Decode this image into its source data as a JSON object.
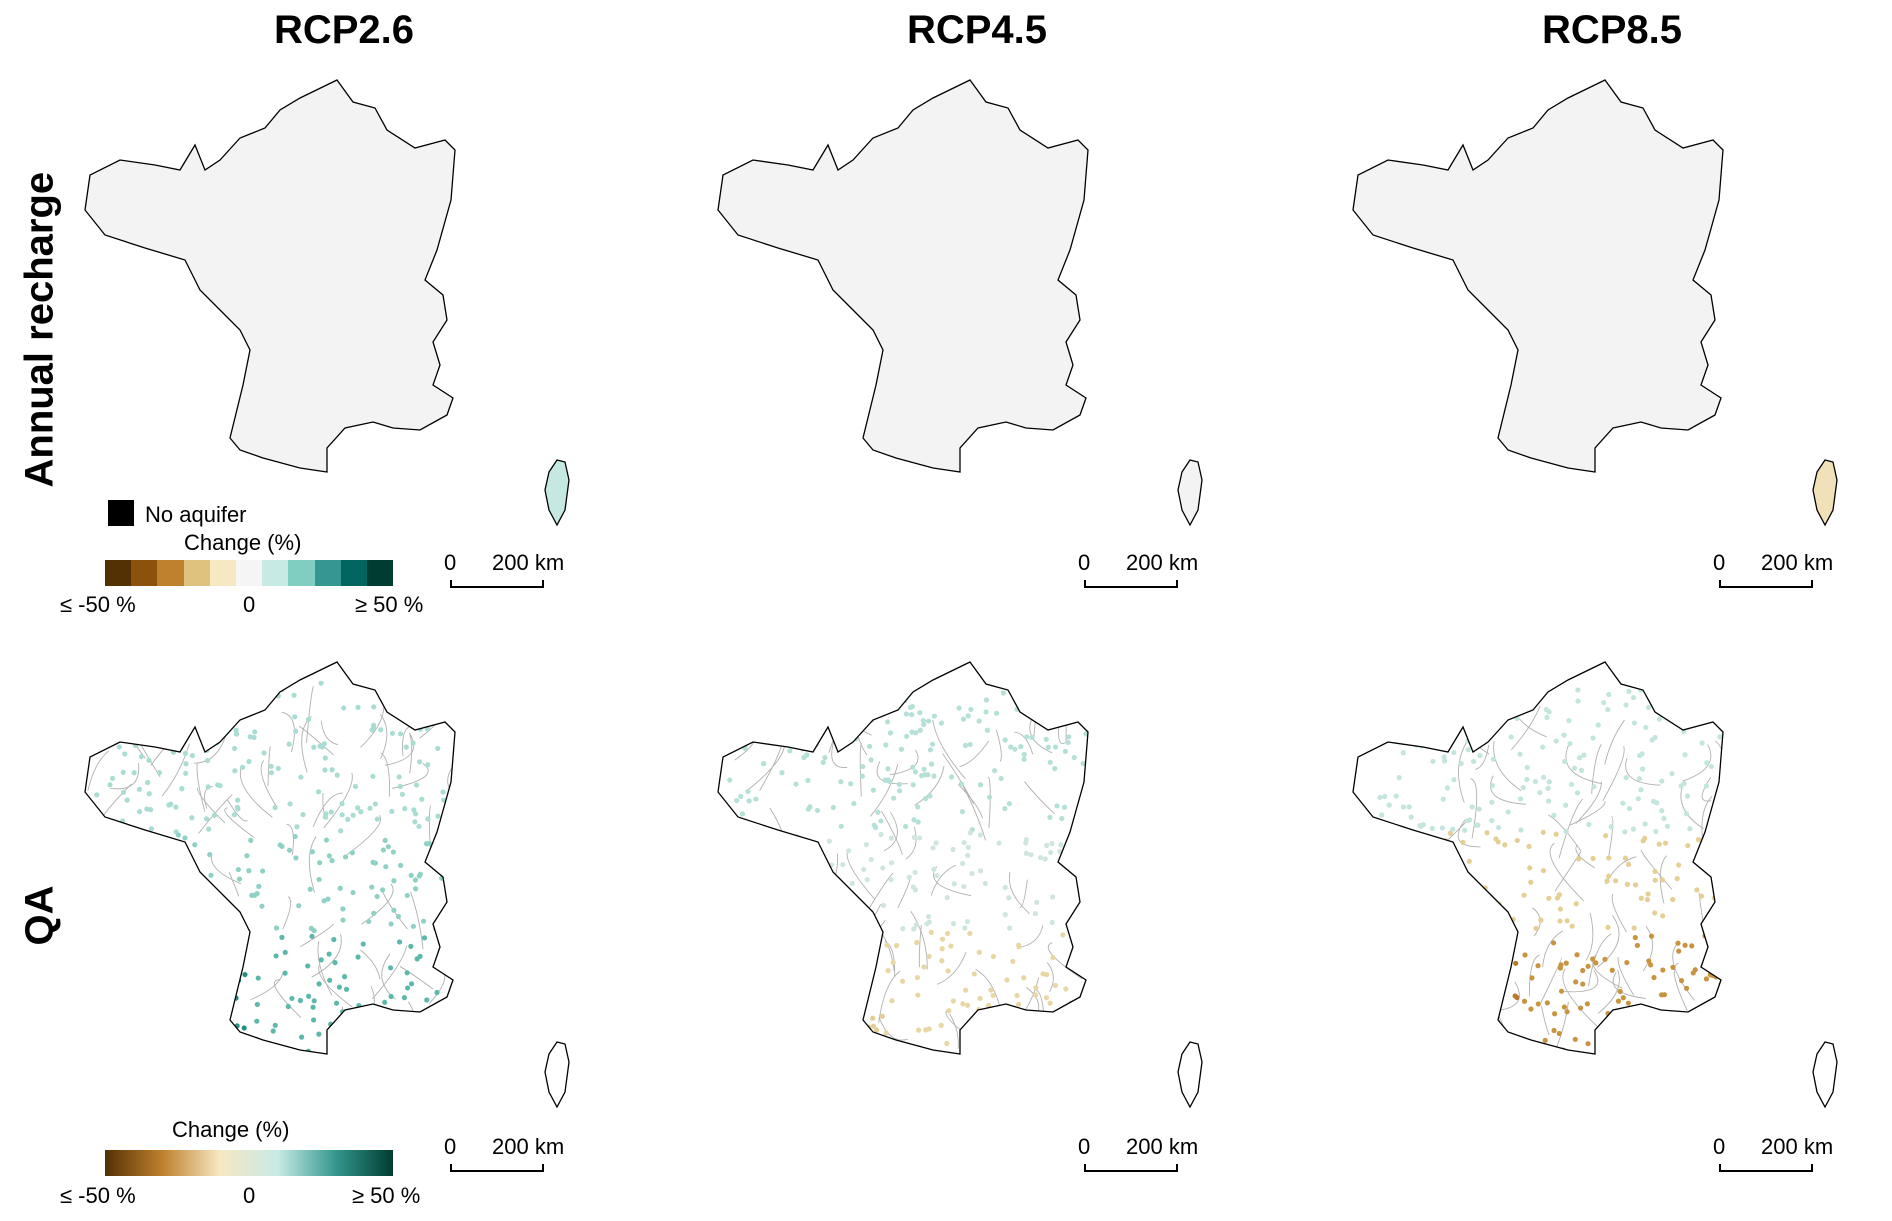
{
  "columns": [
    "RCP2.6",
    "RCP4.5",
    "RCP8.5"
  ],
  "rows": [
    "Annual recharge",
    "QA"
  ],
  "colors": {
    "no_aquifer": "#000000",
    "land_neutral": "#f3f3f3",
    "recharge_positive": "#b9e3dc",
    "recharge_positive_strong": "#7fcdc0",
    "recharge_negative": "#f1dfb3",
    "discharge_neutral": "#eef0e6"
  },
  "recharge_legend": {
    "no_aquifer_label": "No aquifer",
    "title": "Change (%)",
    "min_label": "≤ -50 %",
    "mid_label": "0",
    "max_label": "≥ 50 %",
    "bins": [
      "#543005",
      "#8c510a",
      "#bf812d",
      "#dfc27d",
      "#f6e8c3",
      "#f5f5f5",
      "#c7eae5",
      "#80cdc1",
      "#35978f",
      "#01665e",
      "#003c30"
    ]
  },
  "qa_legend": {
    "title": "Change (%)",
    "min_label": "≤ -50 %",
    "mid_label": "0",
    "max_label": "≥ 50 %",
    "gradient": [
      "#543005",
      "#bf812d",
      "#f6e8c3",
      "#c7eae5",
      "#35978f",
      "#003c30"
    ]
  },
  "scalebar": {
    "zero": "0",
    "distance": "200 km"
  },
  "panels": [
    {
      "row": "Annual recharge",
      "scenario": "RCP2.6",
      "fill_north": "#c5e8e2",
      "fill_center": "#f3f3f3",
      "fill_southwest": "#c5e8e2",
      "fill_south": "#c5e8e2",
      "fill_southeast": "#f3f3f3",
      "corsica": "#c5e8e2"
    },
    {
      "row": "Annual recharge",
      "scenario": "RCP4.5",
      "fill_north": "#bfe6df",
      "fill_center": "#f3f3f3",
      "fill_southwest": "#bfe6df",
      "fill_south": "#f3f3f3",
      "fill_southeast": "#f3f3f3",
      "corsica": "#f3f3f3"
    },
    {
      "row": "Annual recharge",
      "scenario": "RCP8.5",
      "fill_north": "#b5e2da",
      "fill_center": "#f3f3f3",
      "fill_southwest": "#f3f3f3",
      "fill_south": "#efdcae",
      "fill_southeast": "#f1e1b8",
      "corsica": "#f1e1b8"
    },
    {
      "row": "QA",
      "scenario": "RCP2.6",
      "dot_north": "#a9dcd3",
      "dot_center": "#8fd1c5",
      "dot_south": "#5bb8aa",
      "dot_southwest": "#2a8f83"
    },
    {
      "row": "QA",
      "scenario": "RCP4.5",
      "dot_north": "#b5e0d8",
      "dot_center": "#cfe6dc",
      "dot_south": "#e8d6a4",
      "dot_southwest": "#e4cd96"
    },
    {
      "row": "QA",
      "scenario": "RCP8.5",
      "dot_north": "#c2e5de",
      "dot_center": "#e5cf95",
      "dot_south": "#c99440",
      "dot_southwest": "#b8792a"
    }
  ]
}
